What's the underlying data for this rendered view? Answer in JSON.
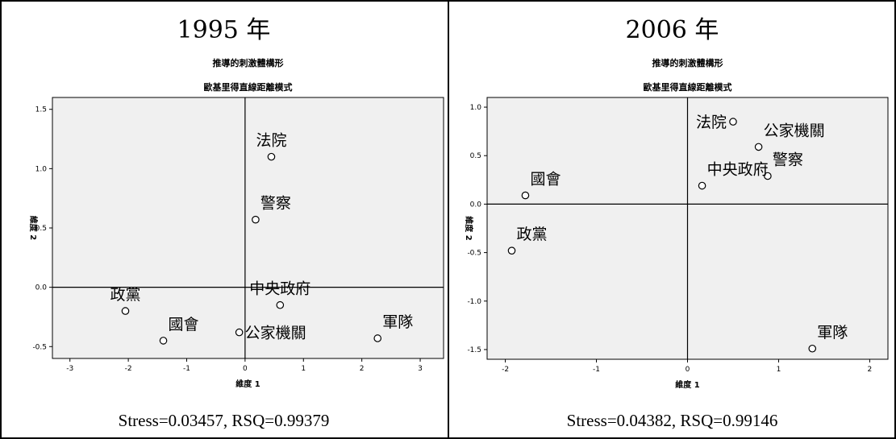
{
  "chart_data": [
    {
      "type": "scatter",
      "year_title": "1995 年",
      "title": "推導的刺激體構形",
      "subtitle": "歐基里得直線距離模式",
      "xlabel": "維度 1",
      "ylabel": "維度 2",
      "xlim": [
        -3.3,
        3.4
      ],
      "ylim": [
        -0.6,
        1.6
      ],
      "xticks": [
        -3,
        -2,
        -1,
        0,
        1,
        2,
        3
      ],
      "yticks": [
        -0.5,
        0.0,
        0.5,
        1.0,
        1.5
      ],
      "ytick_labels": [
        "-0.5",
        "0.0",
        "0.5",
        "1.0",
        "1.5"
      ],
      "points": [
        {
          "label": "法院",
          "x": 0.45,
          "y": 1.1,
          "label_pos": "above"
        },
        {
          "label": "警察",
          "x": 0.18,
          "y": 0.57,
          "label_pos": "above-right"
        },
        {
          "label": "政黨",
          "x": -2.05,
          "y": -0.2,
          "label_pos": "above"
        },
        {
          "label": "中央政府",
          "x": 0.6,
          "y": -0.15,
          "label_pos": "above"
        },
        {
          "label": "國會",
          "x": -1.4,
          "y": -0.45,
          "label_pos": "above-right"
        },
        {
          "label": "公家機關",
          "x": -0.1,
          "y": -0.38,
          "label_pos": "right"
        },
        {
          "label": "軍隊",
          "x": 2.27,
          "y": -0.43,
          "label_pos": "above-right"
        }
      ],
      "grid": false,
      "stress_text": "Stress=0.03457, RSQ=0.99379"
    },
    {
      "type": "scatter",
      "year_title": "2006 年",
      "title": "推導的刺激體構形",
      "subtitle": "歐基里得直線距離模式",
      "xlabel": "維度 1",
      "ylabel": "維度 2",
      "xlim": [
        -2.2,
        2.2
      ],
      "ylim": [
        -1.6,
        1.1
      ],
      "xticks": [
        -2,
        -1,
        0,
        1,
        2
      ],
      "yticks": [
        -1.5,
        -1.0,
        -0.5,
        0.0,
        0.5,
        1.0
      ],
      "ytick_labels": [
        "-1.5",
        "-1.0",
        "-0.5",
        "0.0",
        "0.5",
        "1.0"
      ],
      "points": [
        {
          "label": "法院",
          "x": 0.5,
          "y": 0.85,
          "label_pos": "left"
        },
        {
          "label": "公家機關",
          "x": 0.78,
          "y": 0.59,
          "label_pos": "above-right"
        },
        {
          "label": "警察",
          "x": 0.88,
          "y": 0.29,
          "label_pos": "above-right"
        },
        {
          "label": "中央政府",
          "x": 0.16,
          "y": 0.19,
          "label_pos": "above-right"
        },
        {
          "label": "國會",
          "x": -1.78,
          "y": 0.09,
          "label_pos": "above-right"
        },
        {
          "label": "政黨",
          "x": -1.93,
          "y": -0.48,
          "label_pos": "above-right"
        },
        {
          "label": "軍隊",
          "x": 1.37,
          "y": -1.49,
          "label_pos": "above-right"
        }
      ],
      "grid": false,
      "stress_text": "Stress=0.04382, RSQ=0.99146"
    }
  ],
  "style": {
    "plot_bg": "#f0f0f0",
    "axis_color": "#000000",
    "marker_fill": "#ffffff"
  }
}
